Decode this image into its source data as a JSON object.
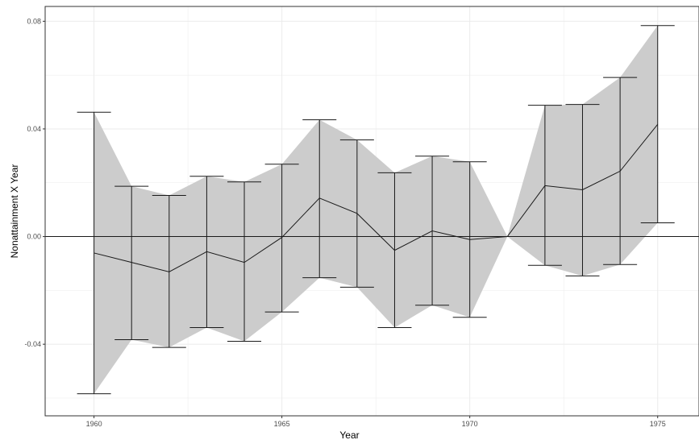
{
  "chart_data": {
    "type": "line",
    "xlabel": "Year",
    "ylabel": "Nonattainment X Year",
    "xlim": [
      1958.7,
      1976.1
    ],
    "ylim": [
      -0.0666,
      0.0855
    ],
    "x_ticks": [
      1960,
      1965,
      1970,
      1975
    ],
    "y_ticks": [
      -0.04,
      0.0,
      0.04,
      0.08
    ],
    "y_tick_labels": [
      "-0.04",
      "0.00",
      "0.04",
      "0.08"
    ],
    "x_tick_labels": [
      "1960",
      "1965",
      "1970",
      "1975"
    ],
    "grid": true,
    "reference_line_y": 0.0,
    "series": [
      {
        "x": [
          1960,
          1961,
          1962,
          1963,
          1964,
          1965,
          1966,
          1967,
          1968,
          1969,
          1970,
          1971,
          1972,
          1973,
          1974,
          1975
        ],
        "estimate": [
          -0.0061,
          -0.0096,
          -0.0131,
          -0.0056,
          -0.0096,
          -0.0003,
          0.0143,
          0.0086,
          -0.0051,
          0.0021,
          -0.0011,
          0.0,
          0.0189,
          0.0174,
          0.0243,
          0.0417
        ],
        "lower": [
          -0.0584,
          -0.0383,
          -0.0412,
          -0.0338,
          -0.0389,
          -0.028,
          -0.0153,
          -0.0188,
          -0.0338,
          -0.0255,
          -0.03,
          0.0,
          -0.0107,
          -0.0146,
          -0.0104,
          0.0051
        ],
        "upper": [
          0.0462,
          0.0187,
          0.0153,
          0.0224,
          0.0203,
          0.0269,
          0.0434,
          0.0359,
          0.0237,
          0.0299,
          0.0278,
          0.0,
          0.0488,
          0.0491,
          0.0591,
          0.0784
        ]
      }
    ],
    "colors": {
      "band": "#cccccc",
      "line": "#1a1a1a",
      "grid": "#ebebeb",
      "border": "#333333",
      "background": "#ffffff"
    }
  }
}
